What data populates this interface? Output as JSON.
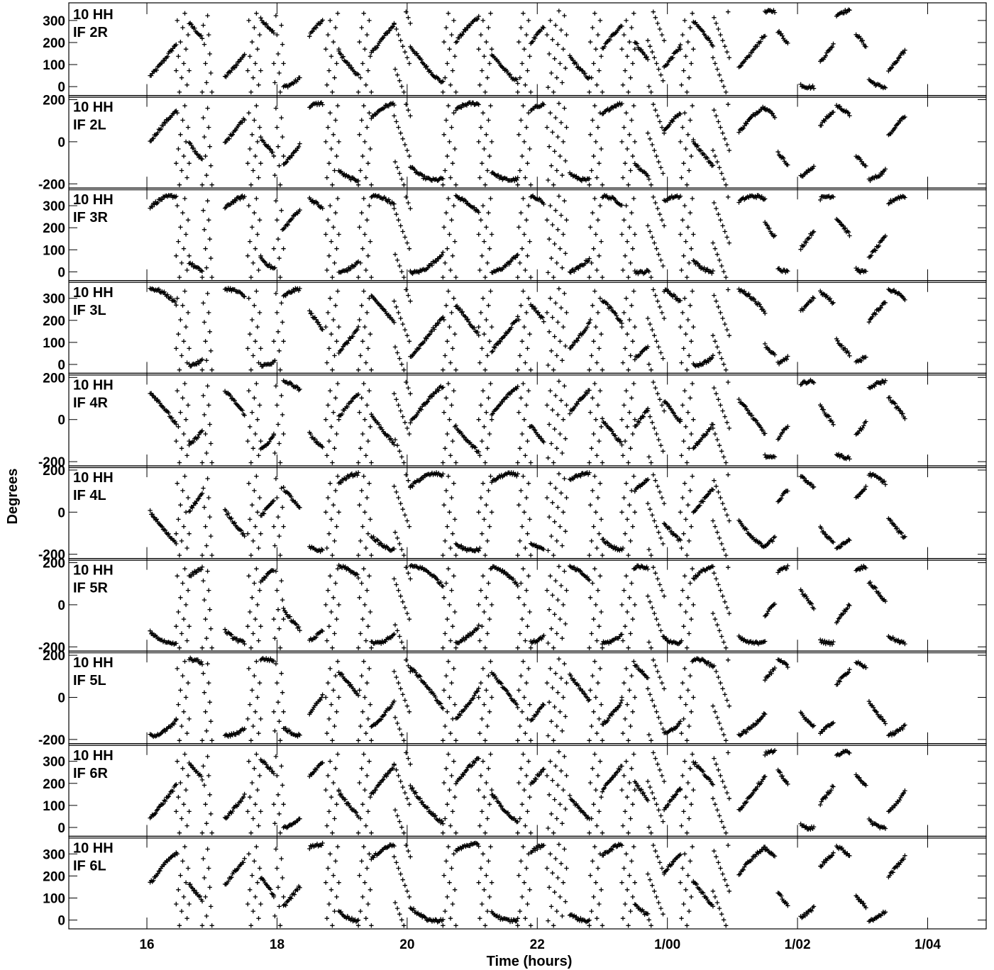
{
  "chart_data": {
    "type": "scatter",
    "xlabel": "Time (hours)",
    "ylabel": "Degrees",
    "marker": "+",
    "x_tick_labels": [
      "16",
      "18",
      "20",
      "22",
      "1/00",
      "1/02",
      "1/04"
    ],
    "x_ticks_hours": [
      16,
      18,
      20,
      22,
      24,
      26,
      28
    ],
    "xlim_hours": [
      14.8,
      28.9
    ],
    "colors": {
      "marker": "#000000",
      "axes": "#000000",
      "background": "#ffffff"
    },
    "panels": [
      {
        "antenna": "10 HH",
        "label": "IF 2R",
        "ylim": [
          -40,
          380
        ],
        "y_ticks": [
          0,
          100,
          200,
          300
        ],
        "y_tick_labels": [
          "0",
          "100",
          "200",
          "300"
        ]
      },
      {
        "antenna": "10 HH",
        "label": "IF 2L",
        "ylim": [
          -220,
          220
        ],
        "y_ticks": [
          -200,
          0,
          200
        ],
        "y_tick_labels": [
          "-200",
          "0",
          "200"
        ]
      },
      {
        "antenna": "10 HH",
        "label": "IF 3R",
        "ylim": [
          -40,
          380
        ],
        "y_ticks": [
          0,
          100,
          200,
          300
        ],
        "y_tick_labels": [
          "0",
          "100",
          "200",
          "300"
        ]
      },
      {
        "antenna": "10 HH",
        "label": "IF 3L",
        "ylim": [
          -40,
          380
        ],
        "y_ticks": [
          0,
          100,
          200,
          300
        ],
        "y_tick_labels": [
          "0",
          "100",
          "200",
          "300"
        ]
      },
      {
        "antenna": "10 HH",
        "label": "IF 4R",
        "ylim": [
          -220,
          220
        ],
        "y_ticks": [
          -200,
          0,
          200
        ],
        "y_tick_labels": [
          "-200",
          "0",
          "200"
        ]
      },
      {
        "antenna": "10 HH",
        "label": "IF 4L",
        "ylim": [
          -220,
          220
        ],
        "y_ticks": [
          -200,
          0,
          200
        ],
        "y_tick_labels": [
          "-200",
          "0",
          "200"
        ]
      },
      {
        "antenna": "10 HH",
        "label": "IF 5R",
        "ylim": [
          -220,
          220
        ],
        "y_ticks": [
          -200,
          0,
          200
        ],
        "y_tick_labels": [
          "-200",
          "0",
          "200"
        ]
      },
      {
        "antenna": "10 HH",
        "label": "IF 5L",
        "ylim": [
          -220,
          220
        ],
        "y_ticks": [
          -200,
          0,
          200
        ],
        "y_tick_labels": [
          "-200",
          "0",
          "200"
        ]
      },
      {
        "antenna": "10 HH",
        "label": "IF 6R",
        "ylim": [
          -40,
          380
        ],
        "y_ticks": [
          0,
          100,
          200,
          300
        ],
        "y_tick_labels": [
          "0",
          "100",
          "200",
          "300"
        ]
      },
      {
        "antenna": "10 HH",
        "label": "IF 6L",
        "ylim": [
          -40,
          380
        ],
        "y_ticks": [
          0,
          100,
          200,
          300
        ],
        "y_tick_labels": [
          "0",
          "100",
          "200",
          "300"
        ]
      }
    ],
    "scans": [
      {
        "t0": 16.05,
        "t1": 16.45,
        "shape": "drift"
      },
      {
        "t0": 16.45,
        "t1": 16.65,
        "shape": "wrap"
      },
      {
        "t0": 16.65,
        "t1": 16.85,
        "shape": "drift"
      },
      {
        "t0": 16.85,
        "t1": 17.0,
        "shape": "wrap"
      },
      {
        "t0": 17.2,
        "t1": 17.5,
        "shape": "drift"
      },
      {
        "t0": 17.55,
        "t1": 17.75,
        "shape": "wrap"
      },
      {
        "t0": 17.75,
        "t1": 17.95,
        "shape": "drift"
      },
      {
        "t0": 17.95,
        "t1": 18.1,
        "shape": "wrap"
      },
      {
        "t0": 18.1,
        "t1": 18.35,
        "shape": "drift"
      },
      {
        "t0": 18.5,
        "t1": 18.7,
        "shape": "drift"
      },
      {
        "t0": 18.75,
        "t1": 18.95,
        "shape": "wrap"
      },
      {
        "t0": 18.95,
        "t1": 19.25,
        "shape": "drift"
      },
      {
        "t0": 19.25,
        "t1": 19.45,
        "shape": "wrap"
      },
      {
        "t0": 19.45,
        "t1": 19.8,
        "shape": "drift"
      },
      {
        "t0": 19.8,
        "t1": 20.05,
        "shape": "wrap"
      },
      {
        "t0": 20.05,
        "t1": 20.55,
        "shape": "drift"
      },
      {
        "t0": 20.55,
        "t1": 20.75,
        "shape": "wrap"
      },
      {
        "t0": 20.75,
        "t1": 21.1,
        "shape": "drift"
      },
      {
        "t0": 21.1,
        "t1": 21.3,
        "shape": "wrap"
      },
      {
        "t0": 21.3,
        "t1": 21.7,
        "shape": "drift"
      },
      {
        "t0": 21.7,
        "t1": 21.9,
        "shape": "wrap"
      },
      {
        "t0": 21.9,
        "t1": 22.1,
        "shape": "drift"
      },
      {
        "t0": 22.15,
        "t1": 22.45,
        "shape": "wrap"
      },
      {
        "t0": 22.5,
        "t1": 22.8,
        "shape": "drift"
      },
      {
        "t0": 22.8,
        "t1": 23.0,
        "shape": "wrap"
      },
      {
        "t0": 23.0,
        "t1": 23.3,
        "shape": "drift"
      },
      {
        "t0": 23.3,
        "t1": 23.5,
        "shape": "wrap"
      },
      {
        "t0": 23.5,
        "t1": 23.7,
        "shape": "drift"
      },
      {
        "t0": 23.7,
        "t1": 23.95,
        "shape": "wrap"
      },
      {
        "t0": 23.95,
        "t1": 24.2,
        "shape": "drift"
      },
      {
        "t0": 24.2,
        "t1": 24.4,
        "shape": "wrap"
      },
      {
        "t0": 24.4,
        "t1": 24.7,
        "shape": "drift"
      },
      {
        "t0": 24.7,
        "t1": 24.95,
        "shape": "wrap"
      },
      {
        "t0": 25.1,
        "t1": 25.5,
        "shape": "drift"
      },
      {
        "t0": 25.5,
        "t1": 25.65,
        "shape": "drift"
      },
      {
        "t0": 25.7,
        "t1": 25.85,
        "shape": "drift"
      },
      {
        "t0": 26.05,
        "t1": 26.25,
        "shape": "drift"
      },
      {
        "t0": 26.35,
        "t1": 26.55,
        "shape": "drift"
      },
      {
        "t0": 26.6,
        "t1": 26.8,
        "shape": "drift"
      },
      {
        "t0": 26.9,
        "t1": 27.05,
        "shape": "drift"
      },
      {
        "t0": 27.1,
        "t1": 27.35,
        "shape": "drift"
      },
      {
        "t0": 27.4,
        "t1": 27.65,
        "shape": "drift"
      }
    ]
  }
}
